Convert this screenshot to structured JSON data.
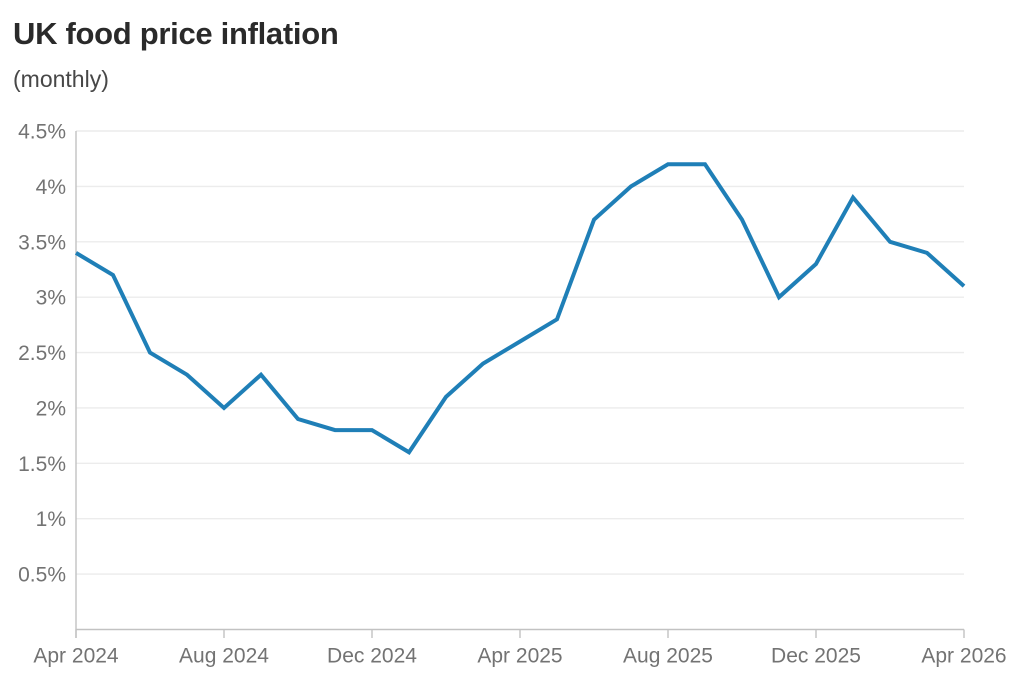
{
  "header": {
    "title": "UK food price inflation",
    "subtitle": "(monthly)"
  },
  "chart_data": {
    "type": "line",
    "title": "UK food price inflation",
    "subtitle": "(monthly)",
    "x": [
      "Apr 2024",
      "May 2024",
      "Jun 2024",
      "Jul 2024",
      "Aug 2024",
      "Sep 2024",
      "Oct 2024",
      "Nov 2024",
      "Dec 2024",
      "Jan 2025",
      "Feb 2025",
      "Mar 2025",
      "Apr 2025",
      "May 2025",
      "Jun 2025",
      "Jul 2025",
      "Aug 2025",
      "Sep 2025",
      "Oct 2025",
      "Nov 2025",
      "Dec 2025",
      "Jan 2026",
      "Feb 2026",
      "Mar 2026",
      "Apr 2026"
    ],
    "values": [
      3.4,
      3.2,
      2.5,
      2.3,
      2.0,
      2.3,
      1.9,
      1.8,
      1.8,
      1.6,
      2.1,
      2.4,
      2.6,
      2.8,
      3.7,
      4.0,
      4.2,
      4.2,
      3.7,
      3.0,
      3.3,
      3.9,
      3.5,
      3.4,
      3.1
    ],
    "unit": "%",
    "x_tick_labels": [
      "Apr 2024",
      "Aug 2024",
      "Dec 2024",
      "Apr 2025",
      "Aug 2025",
      "Dec 2025",
      "Apr 2026"
    ],
    "x_tick_indices": [
      0,
      4,
      8,
      12,
      16,
      20,
      24
    ],
    "y_ticks": [
      0.5,
      1,
      1.5,
      2,
      2.5,
      3,
      3.5,
      4,
      4.5
    ],
    "y_tick_labels": [
      "0.5%",
      "1%",
      "1.5%",
      "2%",
      "2.5%",
      "3%",
      "3.5%",
      "4%",
      "4.5%"
    ],
    "ylim": [
      0,
      4.5
    ],
    "xlabel": "",
    "ylabel": "",
    "grid": "horizontal",
    "legend": "none",
    "colors": {
      "line": "#1f7fb7",
      "grid": "#ececec",
      "axis": "#c2c2c2",
      "tick_label": "#737373",
      "title": "#2a2a2a",
      "subtitle": "#474747",
      "background": "#ffffff"
    }
  }
}
